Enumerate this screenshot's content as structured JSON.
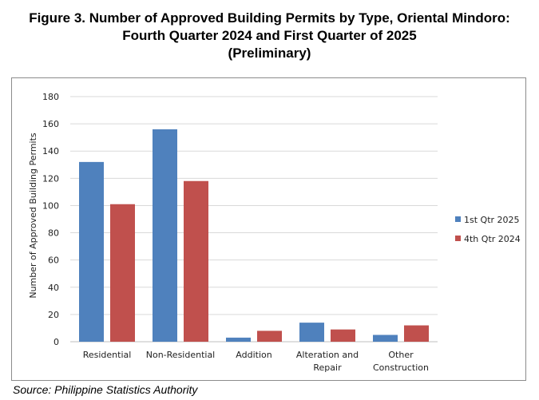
{
  "figure": {
    "title_lines": [
      "Figure 3. Number of Approved Building Permits by Type, Oriental Mindoro:",
      "Fourth Quarter 2024 and First Quarter of 2025",
      "(Preliminary)"
    ],
    "source": "Source: Philippine Statistics Authority"
  },
  "chart_data": {
    "type": "bar",
    "categories": [
      [
        "Residential"
      ],
      [
        "Non-Residential"
      ],
      [
        "Addition"
      ],
      [
        "Alteration and",
        "Repair"
      ],
      [
        "Other",
        "Construction"
      ]
    ],
    "series": [
      {
        "name": "1st Qtr 2025",
        "color": "#4f81bd",
        "values": [
          132,
          156,
          3,
          14,
          5
        ]
      },
      {
        "name": "4th Qtr 2024",
        "color": "#c0504d",
        "values": [
          101,
          118,
          8,
          9,
          12
        ]
      }
    ],
    "ylabel": "Number of Approved Building Permits",
    "ylim": [
      0,
      180
    ],
    "yticks": [
      0,
      20,
      40,
      60,
      80,
      100,
      120,
      140,
      160,
      180
    ],
    "grid": true,
    "legend_position": "right"
  }
}
